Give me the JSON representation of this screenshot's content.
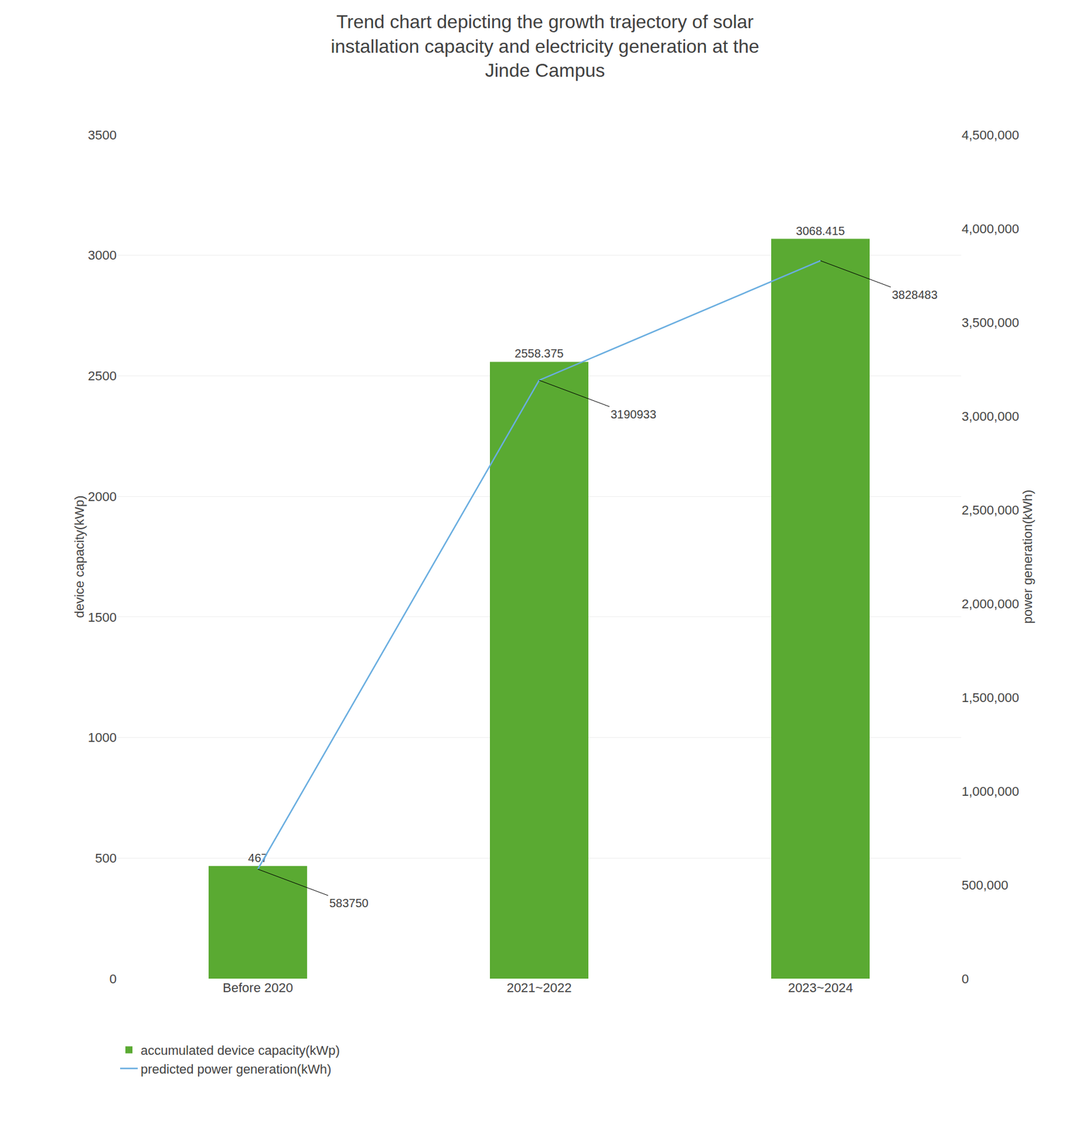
{
  "chart_data": {
    "type": "bar",
    "title": "Trend chart depicting the growth trajectory of solar\ninstallation capacity and electricity generation at the\nJinde Campus",
    "categories": [
      "Before 2020",
      "2021~2022",
      "2023~2024"
    ],
    "series": [
      {
        "name": "accumulated device capacity(kWp)",
        "type": "bar",
        "color": "#5aaa32",
        "values": [
          467,
          2558.375,
          3068.415
        ]
      },
      {
        "name": "predicted power generation(kWh)",
        "type": "line",
        "axis": "y2",
        "color": "#6aaee0",
        "values": [
          583750,
          3190933,
          3828483
        ]
      }
    ],
    "ylabel": "device capacity(kWp)",
    "y2label": "power generation(kWh)",
    "ylim": [
      0,
      3500
    ],
    "yticks": [
      0,
      500,
      1000,
      1500,
      2000,
      2500,
      3000,
      3500
    ],
    "y2lim": [
      0,
      4500000
    ],
    "y2ticks": [
      0,
      {
        "value": 500000,
        "label": "500,000"
      },
      {
        "value": 1000000,
        "label": "1,000,000"
      },
      {
        "value": 1500000,
        "label": "1,500,000"
      },
      {
        "value": 2000000,
        "label": "2,000,000"
      },
      {
        "value": 2500000,
        "label": "2,500,000"
      },
      {
        "value": 3000000,
        "label": "3,000,000"
      },
      {
        "value": 3500000,
        "label": "3,500,000"
      },
      {
        "value": 4000000,
        "label": "4,000,000"
      },
      {
        "value": 4500000,
        "label": "4,500,000"
      }
    ],
    "grid": true,
    "legend": "bottom left",
    "data_labels": true
  }
}
